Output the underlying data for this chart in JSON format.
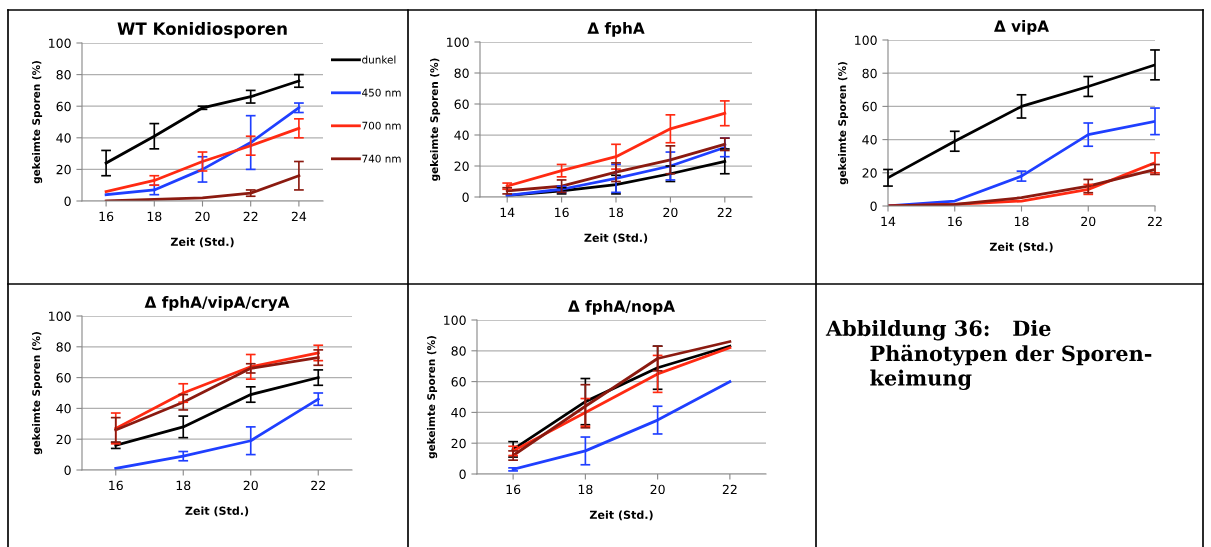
{
  "chart_data": [
    {
      "type": "line",
      "title": "WT Konidiosporen",
      "xlabel": "Zeit (Std.)",
      "ylabel": "gekeimte Sporen (%)",
      "categories": [
        "16",
        "18",
        "20",
        "22",
        "24"
      ],
      "ylim": [
        0,
        100
      ],
      "yticks": [
        0,
        20,
        40,
        60,
        80,
        100
      ],
      "grid": "y",
      "legend": "right",
      "marker": "none",
      "series": [
        {
          "name": "dunkel",
          "color": "#000000",
          "values": [
            24,
            41,
            59,
            66,
            76
          ],
          "errors": [
            8,
            8,
            1,
            4,
            4
          ]
        },
        {
          "name": "450 nm",
          "color": "#1f3fff",
          "values": [
            4,
            7,
            20,
            37,
            59
          ],
          "errors": [
            null,
            3,
            8,
            17,
            3
          ]
        },
        {
          "name": "700 nm",
          "color": "#ff2a12",
          "values": [
            6,
            13,
            25,
            35,
            46
          ],
          "errors": [
            null,
            3,
            6,
            6,
            6
          ]
        },
        {
          "name": "740 nm",
          "color": "#8b1a10",
          "values": [
            0,
            1,
            2,
            5,
            16
          ],
          "errors": [
            null,
            null,
            null,
            2,
            9
          ]
        }
      ]
    },
    {
      "type": "line",
      "title": "Δ fphA",
      "xlabel": "Zeit (Std.)",
      "ylabel": "gekeimte Sporen (%)",
      "categories": [
        "14",
        "16",
        "18",
        "20",
        "22"
      ],
      "ylim": [
        0,
        100
      ],
      "yticks": [
        0,
        20,
        40,
        60,
        80,
        100
      ],
      "grid": "y",
      "marker": "none",
      "series": [
        {
          "color": "#000000",
          "values": [
            1,
            4,
            8,
            15,
            23
          ],
          "errors": [
            null,
            2,
            6,
            5,
            8
          ]
        },
        {
          "color": "#1f3fff",
          "values": [
            1,
            5,
            12,
            20,
            32
          ],
          "errors": [
            null,
            2,
            9,
            9,
            6
          ]
        },
        {
          "color": "#ff2a12",
          "values": [
            7,
            17,
            26,
            44,
            54
          ],
          "errors": [
            2,
            4,
            8,
            9,
            8
          ]
        },
        {
          "color": "#8b1a10",
          "values": [
            4,
            7,
            16,
            24,
            34
          ],
          "errors": [
            2,
            4,
            6,
            9,
            4
          ]
        }
      ]
    },
    {
      "type": "line",
      "title": "Δ vipA",
      "xlabel": "Zeit (Std.)",
      "ylabel": "gekeimte Sporen (%)",
      "x": [
        14,
        16,
        18,
        20,
        22
      ],
      "xlim": [
        14,
        22
      ],
      "xticks": [
        14,
        16,
        18,
        20,
        22
      ],
      "ylim": [
        0,
        100
      ],
      "yticks": [
        0,
        20,
        40,
        60,
        80,
        100
      ],
      "grid": "y",
      "marker": "none",
      "series": [
        {
          "color": "#000000",
          "values": [
            17,
            39,
            60,
            72,
            85
          ],
          "errors": [
            5,
            6,
            7,
            6,
            9
          ]
        },
        {
          "color": "#1f3fff",
          "values": [
            0,
            3,
            18,
            43,
            51
          ],
          "errors": [
            null,
            null,
            3,
            7,
            8
          ]
        },
        {
          "color": "#ff2a12",
          "values": [
            0,
            1,
            3,
            10,
            26
          ],
          "errors": [
            null,
            null,
            null,
            3,
            6
          ]
        },
        {
          "color": "#8b1a10",
          "values": [
            0,
            1,
            5,
            12,
            22
          ],
          "errors": [
            null,
            null,
            null,
            4,
            3
          ]
        }
      ]
    },
    {
      "type": "line",
      "title": "Δ fphA/vipA/cryA",
      "xlabel": "Zeit (Std.)",
      "ylabel": "gekeimte Sporen (%)",
      "categories": [
        "16",
        "18",
        "20",
        "22"
      ],
      "ylim": [
        0,
        100
      ],
      "yticks": [
        0,
        20,
        40,
        60,
        80,
        100
      ],
      "grid": "y",
      "marker": "none",
      "series": [
        {
          "color": "#000000",
          "values": [
            16,
            28,
            49,
            60
          ],
          "errors": [
            2,
            7,
            5,
            5
          ]
        },
        {
          "color": "#1f3fff",
          "values": [
            1,
            9,
            19,
            46
          ],
          "errors": [
            null,
            3,
            9,
            4
          ]
        },
        {
          "color": "#ff2a12",
          "values": [
            27,
            50,
            67,
            76
          ],
          "errors": [
            10,
            6,
            8,
            5
          ]
        },
        {
          "color": "#8b1a10",
          "values": [
            26,
            44,
            66,
            73
          ],
          "errors": [
            8,
            5,
            3,
            5
          ]
        }
      ]
    },
    {
      "type": "line",
      "title": "Δ fphA/nopA",
      "xlabel": "Zeit (Std.)",
      "ylabel": "gekeimte Sporen (%)",
      "categories": [
        "16",
        "18",
        "20",
        "22"
      ],
      "ylim": [
        0,
        100
      ],
      "yticks": [
        0,
        20,
        40,
        60,
        80,
        100
      ],
      "grid": "y",
      "marker": "none",
      "series": [
        {
          "color": "#000000",
          "values": [
            16,
            47,
            69,
            83
          ],
          "errors": [
            5,
            15,
            14,
            null
          ]
        },
        {
          "color": "#1f3fff",
          "values": [
            3,
            15,
            35,
            60
          ],
          "errors": [
            1,
            9,
            9,
            null
          ]
        },
        {
          "color": "#ff2a12",
          "values": [
            15,
            40,
            65,
            82
          ],
          "errors": [
            3,
            9,
            12,
            null
          ]
        },
        {
          "color": "#8b1a10",
          "values": [
            12,
            44,
            75,
            86
          ],
          "errors": [
            3,
            14,
            8,
            null
          ]
        }
      ]
    },
    {
      "type": "other",
      "title": "Abbildung 36:   Die\n      Phänotypen der Sporen-\n      keimung"
    }
  ]
}
